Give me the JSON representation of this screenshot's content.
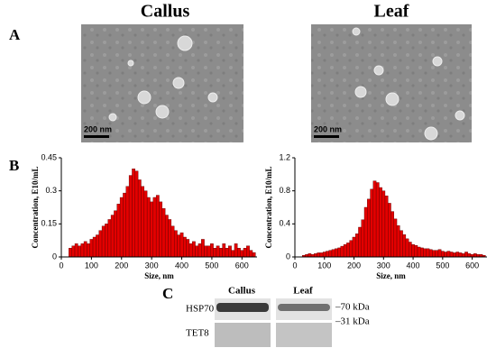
{
  "panels": {
    "a": "A",
    "b": "B",
    "c": "C"
  },
  "images": [
    {
      "title": "Callus",
      "scale": "200 nm"
    },
    {
      "title": "Leaf",
      "scale": "200 nm"
    }
  ],
  "blot": {
    "lanes": [
      "Callus",
      "Leaf"
    ],
    "rows": [
      "HSP70",
      "TET8"
    ],
    "markers": [
      "–70 kDa",
      "–31 kDa"
    ]
  },
  "chart_data": [
    {
      "type": "histogram",
      "xlabel": "Size, nm",
      "ylabel": "Concentration, E10/mL",
      "color": "#e30000",
      "bins": [
        25,
        35,
        45,
        55,
        65,
        75,
        85,
        95,
        105,
        115,
        125,
        135,
        145,
        155,
        165,
        175,
        185,
        195,
        205,
        215,
        225,
        235,
        245,
        255,
        265,
        275,
        285,
        295,
        305,
        315,
        325,
        335,
        345,
        355,
        365,
        375,
        385,
        395,
        405,
        415,
        425,
        435,
        445,
        455,
        465,
        475,
        485,
        495,
        505,
        515,
        525,
        535,
        545,
        555,
        565,
        575,
        585,
        595,
        605,
        615,
        625,
        635,
        645
      ],
      "values": [
        0.04,
        0.05,
        0.06,
        0.05,
        0.06,
        0.07,
        0.06,
        0.08,
        0.09,
        0.1,
        0.12,
        0.14,
        0.15,
        0.17,
        0.19,
        0.21,
        0.24,
        0.27,
        0.29,
        0.32,
        0.37,
        0.4,
        0.39,
        0.35,
        0.32,
        0.3,
        0.27,
        0.25,
        0.27,
        0.28,
        0.25,
        0.22,
        0.19,
        0.17,
        0.14,
        0.12,
        0.1,
        0.11,
        0.09,
        0.08,
        0.06,
        0.07,
        0.05,
        0.06,
        0.08,
        0.05,
        0.05,
        0.06,
        0.04,
        0.05,
        0.04,
        0.06,
        0.04,
        0.05,
        0.03,
        0.06,
        0.04,
        0.03,
        0.04,
        0.05,
        0.03,
        0.02
      ],
      "xlim": [
        0,
        650
      ],
      "xticks": [
        0,
        100,
        200,
        300,
        400,
        500,
        600
      ],
      "ylim": [
        0,
        0.45
      ],
      "yticks": [
        0,
        0.15,
        0.3,
        0.45
      ]
    },
    {
      "type": "histogram",
      "xlabel": "Size, nm",
      "ylabel": "Concentration, E10/mL",
      "color": "#e30000",
      "bins": [
        25,
        35,
        45,
        55,
        65,
        75,
        85,
        95,
        105,
        115,
        125,
        135,
        145,
        155,
        165,
        175,
        185,
        195,
        205,
        215,
        225,
        235,
        245,
        255,
        265,
        275,
        285,
        295,
        305,
        315,
        325,
        335,
        345,
        355,
        365,
        375,
        385,
        395,
        405,
        415,
        425,
        435,
        445,
        455,
        465,
        475,
        485,
        495,
        505,
        515,
        525,
        535,
        545,
        555,
        565,
        575,
        585,
        595,
        605,
        615,
        625,
        635,
        645
      ],
      "values": [
        0.02,
        0.03,
        0.04,
        0.03,
        0.04,
        0.05,
        0.05,
        0.06,
        0.07,
        0.08,
        0.09,
        0.1,
        0.11,
        0.13,
        0.15,
        0.17,
        0.2,
        0.24,
        0.28,
        0.36,
        0.45,
        0.6,
        0.7,
        0.82,
        0.92,
        0.9,
        0.84,
        0.8,
        0.74,
        0.65,
        0.55,
        0.46,
        0.38,
        0.32,
        0.27,
        0.22,
        0.18,
        0.15,
        0.14,
        0.12,
        0.11,
        0.1,
        0.1,
        0.09,
        0.08,
        0.08,
        0.09,
        0.07,
        0.06,
        0.07,
        0.06,
        0.05,
        0.06,
        0.05,
        0.04,
        0.06,
        0.04,
        0.03,
        0.04,
        0.03,
        0.03,
        0.02
      ],
      "xlim": [
        0,
        650
      ],
      "xticks": [
        0,
        100,
        200,
        300,
        400,
        500,
        600
      ],
      "ylim": [
        0,
        1.2
      ],
      "yticks": [
        0,
        0.4,
        0.8,
        1.2
      ]
    }
  ]
}
